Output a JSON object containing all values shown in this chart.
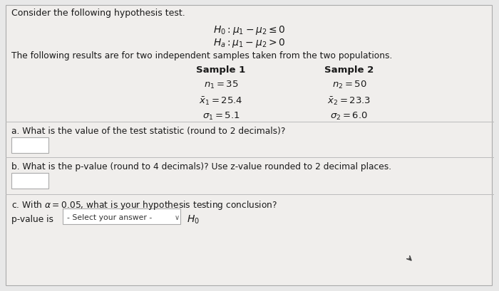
{
  "bg_color": "#e8e8e8",
  "panel_color": "#f0eeec",
  "white_color": "#ffffff",
  "text_color": "#1a1a1a",
  "title_text": "Consider the following hypothesis test.",
  "h0_text": "$H_0: \\mu_1 - \\mu_2 \\leq 0$",
  "ha_text": "$H_a: \\mu_1 - \\mu_2 > 0$",
  "intro_text": "The following results are for two independent samples taken from the two populations.",
  "sample1_header": "Sample 1",
  "sample2_header": "Sample 2",
  "sample1_n": "$n_1 = 35$",
  "sample2_n": "$n_2 = 50$",
  "sample1_xbar": "$\\bar{x}_1 = 25.4$",
  "sample2_xbar": "$\\bar{x}_2 = 23.3$",
  "sample1_sigma": "$\\sigma_1 = 5.1$",
  "sample2_sigma": "$\\sigma_2 = 6.0$",
  "q_a": "a. What is the value of the test statistic (round to 2 decimals)?",
  "q_b": "b. What is the p-value (round to 4 decimals)? Use z-value rounded to 2 decimal places.",
  "q_c": "c. With $\\alpha = 0.05$, what is your hypothesis testing conclusion?",
  "pvalue_label": "p-value is",
  "select_answer": "- Select your answer -",
  "h0_conclusion": "$H_0$",
  "box_edge": "#aaaaaa",
  "divider_color": "#bbbbbb"
}
